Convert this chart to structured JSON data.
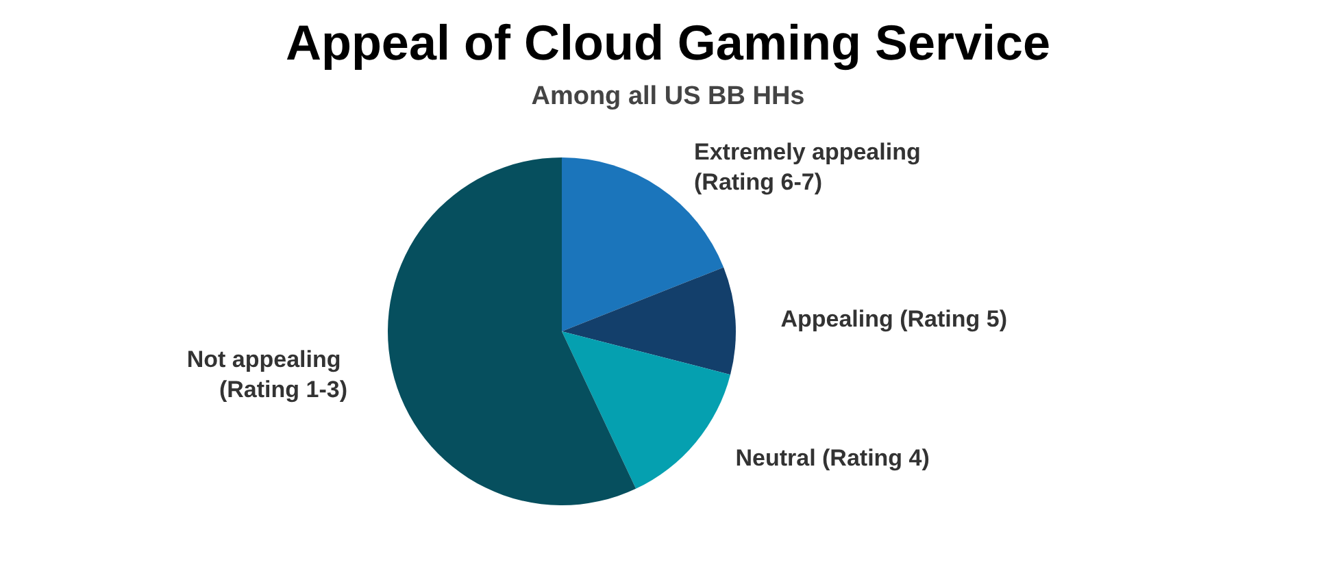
{
  "chart_data": {
    "type": "pie",
    "title": "Appeal of Cloud Gaming Service",
    "subtitle": "Among all US BB HHs",
    "categories": [
      "Extremely appealing (Rating 6-7)",
      "Appealing (Rating 5)",
      "Neutral (Rating 4)",
      "Not appealing (Rating 1-3)"
    ],
    "values": [
      19,
      10,
      14,
      57
    ],
    "colors": [
      "#1b75bb",
      "#133f6b",
      "#05a0b0",
      "#064f5e"
    ],
    "legend": false
  }
}
